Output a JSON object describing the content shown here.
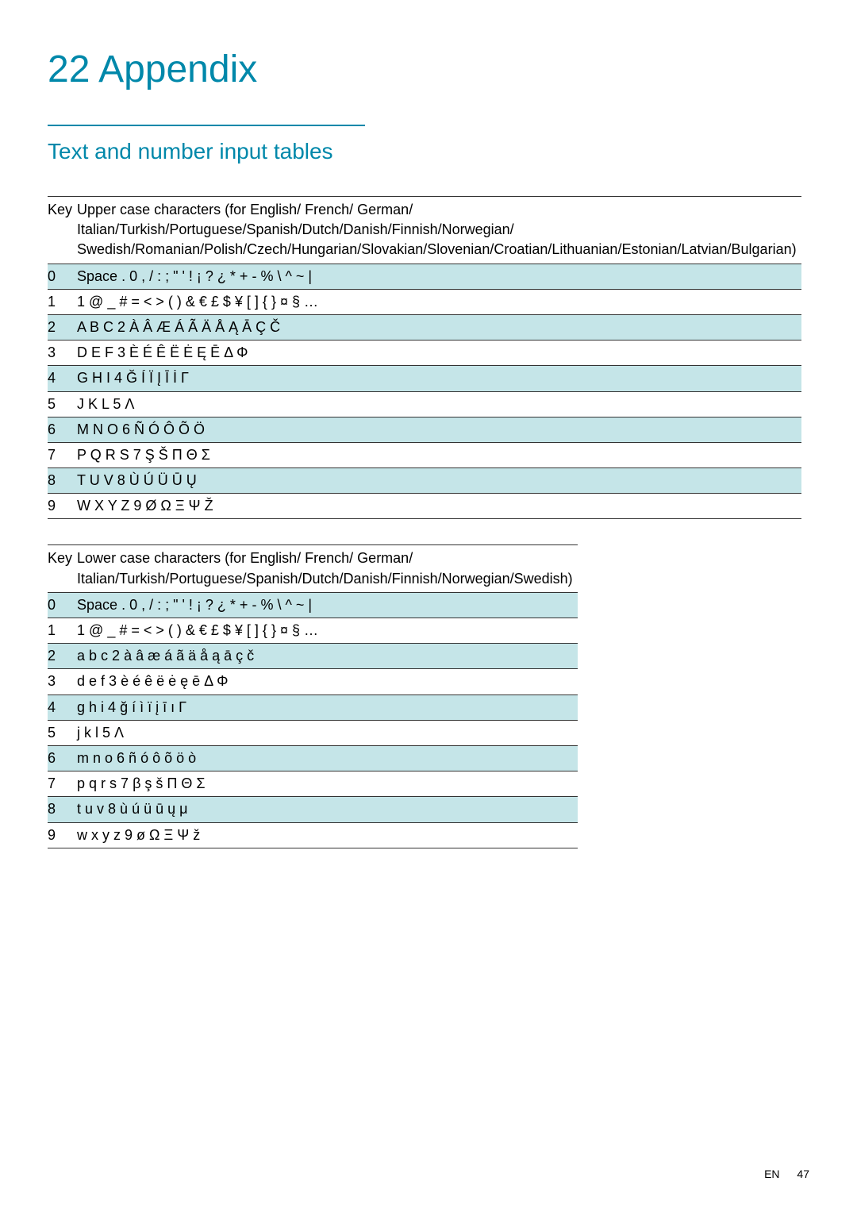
{
  "chapter": {
    "number": "22",
    "title": "Appendix"
  },
  "section": {
    "title": "Text and number input tables"
  },
  "table1": {
    "key_header": "Key",
    "desc_header": "Upper case characters (for English/ French/ German/ Italian/Turkish/Portuguese/Spanish/Dutch/Danish/Finnish/Norwegian/ Swedish/Romanian/Polish/Czech/Hungarian/Slovakian/Slovenian/Croatian/Lithuanian/Estonian/Latvian/Bulgarian)",
    "rows": [
      {
        "key": "0",
        "val": "Space . 0 , / : ; \" ' ! ¡ ? ¿ * + - % \\ ^ ~ |",
        "shaded": true
      },
      {
        "key": "1",
        "val": "1 @ _ # = < > ( ) & € £ $ ¥ [ ] { } ¤ § …",
        "shaded": false
      },
      {
        "key": "2",
        "val": "A B C 2 À Â Æ Á Ã Ä Å Ą Ā Ç Č",
        "shaded": true
      },
      {
        "key": "3",
        "val": "D E F 3 È É Ê Ë Ė Ę Ē Δ Φ",
        "shaded": false
      },
      {
        "key": "4",
        "val": "G H I 4 Ğ Í Ï Į Ī İ Γ",
        "shaded": true
      },
      {
        "key": "5",
        "val": "J K L 5 Λ",
        "shaded": false
      },
      {
        "key": "6",
        "val": "M N O 6 Ñ Ó Ô Õ Ö",
        "shaded": true
      },
      {
        "key": "7",
        "val": "P Q R S 7 Ş Š Π Θ Σ",
        "shaded": false
      },
      {
        "key": "8",
        "val": "T U V 8 Ù Ú Ü Ū Ų",
        "shaded": true
      },
      {
        "key": "9",
        "val": "W X Y Z 9 Ø Ω Ξ Ψ Ž",
        "shaded": false
      }
    ]
  },
  "table2": {
    "key_header": "Key",
    "desc_header": "Lower case characters (for English/ French/ German/ Italian/Turkish/Portuguese/Spanish/Dutch/Danish/Finnish/Norwegian/Swedish)",
    "rows": [
      {
        "key": "0",
        "val": "Space . 0 , / : ; \" ' ! ¡ ? ¿ * + - % \\ ^ ~ |",
        "shaded": true
      },
      {
        "key": "1",
        "val": "1 @ _ # = < > ( ) & € £ $ ¥ [ ] { } ¤ § …",
        "shaded": false
      },
      {
        "key": "2",
        "val": "a b c 2 à â æ á ã ä å ą ā ç č",
        "shaded": true
      },
      {
        "key": "3",
        "val": "d e f 3 è é ê ë ė      ę ē Δ Φ",
        "shaded": false
      },
      {
        "key": "4",
        "val": "g h i 4 ğ í ì ï į ī ı Γ",
        "shaded": true
      },
      {
        "key": "5",
        "val": "j k l 5 Λ",
        "shaded": false
      },
      {
        "key": "6",
        "val": "m n o 6 ñ ó ô õ ö ò",
        "shaded": true
      },
      {
        "key": "7",
        "val": "p q r s 7 β ş š Π Θ Σ",
        "shaded": false
      },
      {
        "key": "8",
        "val": "t u v 8 ù ú ü ū ų μ",
        "shaded": true
      },
      {
        "key": "9",
        "val": "w x y z 9 ø Ω Ξ Ψ ž",
        "shaded": false
      }
    ]
  },
  "footer": {
    "lang": "EN",
    "page": "47"
  },
  "colors": {
    "accent": "#0088aa",
    "shade": "#c5e5e8",
    "text": "#333333",
    "background": "#ffffff"
  }
}
